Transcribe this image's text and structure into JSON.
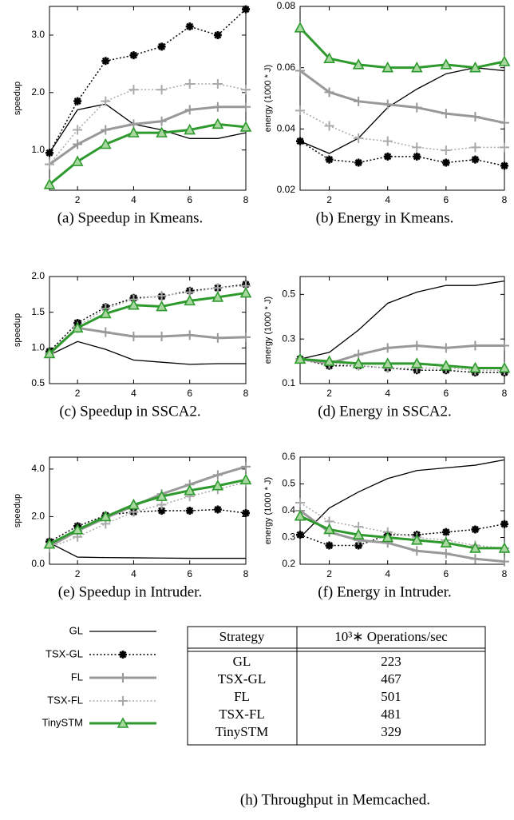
{
  "chart_data": [
    {
      "type": "line",
      "caption": "(a) Speedup in Kmeans.",
      "ylabel": "speedup",
      "x": [
        1,
        2,
        3,
        4,
        5,
        6,
        7,
        8
      ],
      "xlim": [
        1,
        8
      ],
      "xticks": [
        2,
        4,
        6,
        8
      ],
      "ylim": [
        0.3,
        3.5
      ],
      "yticks": [
        {
          "value": 1,
          "label": "1.0"
        },
        {
          "value": 2,
          "label": "2.0"
        },
        {
          "value": 3,
          "label": "3.0"
        }
      ],
      "series": [
        {
          "name": "GL",
          "color": "#000000",
          "line_style": "solid",
          "line_width": 1.3,
          "marker": "none",
          "values": [
            0.95,
            1.7,
            1.8,
            1.45,
            1.35,
            1.2,
            1.2,
            1.3
          ]
        },
        {
          "name": "TSX-GL",
          "color": "#000000",
          "line_style": "dotted",
          "line_width": 1.5,
          "marker": "star",
          "values": [
            0.95,
            1.85,
            2.55,
            2.65,
            2.8,
            3.15,
            3.0,
            3.45
          ]
        },
        {
          "name": "FL",
          "color": "#999999",
          "line_style": "solid",
          "line_width": 3,
          "marker": "plus",
          "values": [
            0.75,
            1.1,
            1.35,
            1.45,
            1.5,
            1.7,
            1.75,
            1.75
          ]
        },
        {
          "name": "TSX-FL",
          "color": "#aaaaaa",
          "line_style": "dotted",
          "line_width": 1.5,
          "marker": "plus",
          "values": [
            0.75,
            1.35,
            1.85,
            2.05,
            2.05,
            2.15,
            2.15,
            2.05
          ]
        },
        {
          "name": "TinySTM",
          "color": "#2e9a2e",
          "fill": "#a8d8a0",
          "line_style": "solid",
          "line_width": 3,
          "marker": "triangle",
          "values": [
            0.4,
            0.8,
            1.1,
            1.3,
            1.3,
            1.35,
            1.45,
            1.4
          ]
        }
      ]
    },
    {
      "type": "line",
      "caption": "(b) Energy in Kmeans.",
      "ylabel": "energy (1000 * J)",
      "x": [
        1,
        2,
        3,
        4,
        5,
        6,
        7,
        8
      ],
      "xlim": [
        1,
        8
      ],
      "xticks": [
        2,
        4,
        6,
        8
      ],
      "ylim": [
        0.02,
        0.08
      ],
      "yticks": [
        0.02,
        0.04,
        0.06,
        0.08
      ],
      "series": [
        {
          "name": "GL",
          "color": "#000000",
          "line_style": "solid",
          "line_width": 1.3,
          "marker": "none",
          "values": [
            0.036,
            0.032,
            0.037,
            0.047,
            0.053,
            0.058,
            0.06,
            0.059
          ]
        },
        {
          "name": "TSX-GL",
          "color": "#000000",
          "line_style": "dotted",
          "line_width": 1.5,
          "marker": "star",
          "values": [
            0.036,
            0.03,
            0.029,
            0.031,
            0.031,
            0.029,
            0.03,
            0.028
          ]
        },
        {
          "name": "FL",
          "color": "#999999",
          "line_style": "solid",
          "line_width": 3,
          "marker": "plus",
          "values": [
            0.059,
            0.052,
            0.049,
            0.048,
            0.047,
            0.045,
            0.044,
            0.042
          ]
        },
        {
          "name": "TSX-FL",
          "color": "#aaaaaa",
          "line_style": "dotted",
          "line_width": 1.5,
          "marker": "plus",
          "values": [
            0.046,
            0.041,
            0.037,
            0.036,
            0.034,
            0.033,
            0.034,
            0.034
          ]
        },
        {
          "name": "TinySTM",
          "color": "#2e9a2e",
          "fill": "#a8d8a0",
          "line_style": "solid",
          "line_width": 3,
          "marker": "triangle",
          "values": [
            0.073,
            0.063,
            0.061,
            0.06,
            0.06,
            0.061,
            0.06,
            0.062
          ]
        }
      ]
    },
    {
      "type": "line",
      "caption": "(c) Speedup in SSCA2.",
      "ylabel": "speedup",
      "x": [
        1,
        2,
        3,
        4,
        5,
        6,
        7,
        8
      ],
      "xlim": [
        1,
        8
      ],
      "xticks": [
        2,
        4,
        6,
        8
      ],
      "ylim": [
        0.5,
        2.0
      ],
      "yticks": [
        0.5,
        {
          "value": 1,
          "label": "1.0"
        },
        1.5,
        {
          "value": 2,
          "label": "2.0"
        }
      ],
      "series": [
        {
          "name": "GL",
          "color": "#000000",
          "line_style": "solid",
          "line_width": 1.3,
          "marker": "none",
          "values": [
            0.9,
            1.09,
            0.98,
            0.83,
            0.8,
            0.77,
            0.78,
            0.78
          ]
        },
        {
          "name": "TSX-GL",
          "color": "#000000",
          "line_style": "dotted",
          "line_width": 1.5,
          "marker": "star",
          "values": [
            0.95,
            1.35,
            1.57,
            1.7,
            1.72,
            1.8,
            1.84,
            1.89
          ]
        },
        {
          "name": "FL",
          "color": "#999999",
          "line_style": "solid",
          "line_width": 3,
          "marker": "plus",
          "values": [
            0.92,
            1.28,
            1.22,
            1.16,
            1.16,
            1.18,
            1.14,
            1.15
          ]
        },
        {
          "name": "TSX-FL",
          "color": "#aaaaaa",
          "line_style": "dotted",
          "line_width": 1.5,
          "marker": "plus",
          "values": [
            0.92,
            1.3,
            1.55,
            1.68,
            1.73,
            1.78,
            1.84,
            1.87
          ]
        },
        {
          "name": "TinySTM",
          "color": "#2e9a2e",
          "fill": "#a8d8a0",
          "line_style": "solid",
          "line_width": 3,
          "marker": "triangle",
          "values": [
            0.92,
            1.28,
            1.48,
            1.6,
            1.58,
            1.66,
            1.71,
            1.77
          ]
        }
      ]
    },
    {
      "type": "line",
      "caption": "(d) Energy in SSCA2.",
      "ylabel": "energy (1000 * J)",
      "x": [
        1,
        2,
        3,
        4,
        5,
        6,
        7,
        8
      ],
      "xlim": [
        1,
        8
      ],
      "xticks": [
        2,
        4,
        6,
        8
      ],
      "ylim": [
        0.1,
        0.58
      ],
      "yticks": [
        0.1,
        0.3,
        0.5
      ],
      "series": [
        {
          "name": "GL",
          "color": "#000000",
          "line_style": "solid",
          "line_width": 1.3,
          "marker": "none",
          "values": [
            0.21,
            0.24,
            0.34,
            0.46,
            0.51,
            0.54,
            0.54,
            0.56
          ]
        },
        {
          "name": "TSX-GL",
          "color": "#000000",
          "line_style": "dotted",
          "line_width": 1.5,
          "marker": "star",
          "values": [
            0.21,
            0.18,
            0.18,
            0.17,
            0.16,
            0.16,
            0.15,
            0.15
          ]
        },
        {
          "name": "FL",
          "color": "#999999",
          "line_style": "solid",
          "line_width": 3,
          "marker": "plus",
          "values": [
            0.21,
            0.19,
            0.23,
            0.26,
            0.27,
            0.26,
            0.27,
            0.27
          ]
        },
        {
          "name": "TSX-FL",
          "color": "#aaaaaa",
          "line_style": "dotted",
          "line_width": 1.5,
          "marker": "plus",
          "values": [
            0.21,
            0.19,
            0.18,
            0.17,
            0.17,
            0.17,
            0.16,
            0.16
          ]
        },
        {
          "name": "TinySTM",
          "color": "#2e9a2e",
          "fill": "#a8d8a0",
          "line_style": "solid",
          "line_width": 3,
          "marker": "triangle",
          "values": [
            0.21,
            0.2,
            0.19,
            0.19,
            0.19,
            0.18,
            0.17,
            0.17
          ]
        }
      ]
    },
    {
      "type": "line",
      "caption": "(e) Speedup in Intruder.",
      "ylabel": "speedup",
      "x": [
        1,
        2,
        3,
        4,
        5,
        6,
        7,
        8
      ],
      "xlim": [
        1,
        8
      ],
      "xticks": [
        2,
        4,
        6,
        8
      ],
      "ylim": [
        0,
        4.5
      ],
      "yticks": [
        {
          "value": 0,
          "label": "0.0"
        },
        {
          "value": 2,
          "label": "2.0"
        },
        {
          "value": 4,
          "label": "4.0"
        }
      ],
      "series": [
        {
          "name": "GL",
          "color": "#000000",
          "line_style": "solid",
          "line_width": 1.3,
          "marker": "none",
          "values": [
            0.9,
            0.3,
            0.28,
            0.27,
            0.26,
            0.25,
            0.25,
            0.25
          ]
        },
        {
          "name": "TSX-GL",
          "color": "#000000",
          "line_style": "dotted",
          "line_width": 1.5,
          "marker": "star",
          "values": [
            0.95,
            1.6,
            2.05,
            2.2,
            2.25,
            2.25,
            2.3,
            2.15
          ]
        },
        {
          "name": "FL",
          "color": "#999999",
          "line_style": "solid",
          "line_width": 3,
          "marker": "plus",
          "values": [
            0.75,
            1.4,
            1.95,
            2.45,
            2.95,
            3.35,
            3.75,
            4.1
          ]
        },
        {
          "name": "TSX-FL",
          "color": "#aaaaaa",
          "line_style": "dotted",
          "line_width": 1.5,
          "marker": "plus",
          "values": [
            0.7,
            1.15,
            1.7,
            2.2,
            2.5,
            2.85,
            3.15,
            3.45
          ]
        },
        {
          "name": "TinySTM",
          "color": "#2e9a2e",
          "fill": "#a8d8a0",
          "line_style": "solid",
          "line_width": 3,
          "marker": "triangle",
          "values": [
            0.85,
            1.45,
            2.0,
            2.5,
            2.85,
            3.1,
            3.3,
            3.55
          ]
        }
      ]
    },
    {
      "type": "line",
      "caption": "(f) Energy in Intruder.",
      "ylabel": "energy (1000 * J)",
      "x": [
        1,
        2,
        3,
        4,
        5,
        6,
        7,
        8
      ],
      "xlim": [
        1,
        8
      ],
      "xticks": [
        2,
        4,
        6,
        8
      ],
      "ylim": [
        0.2,
        0.6
      ],
      "yticks": [
        0.2,
        0.3,
        0.4,
        0.5,
        0.6
      ],
      "series": [
        {
          "name": "GL",
          "color": "#000000",
          "line_style": "solid",
          "line_width": 1.3,
          "marker": "none",
          "values": [
            0.3,
            0.41,
            0.47,
            0.52,
            0.55,
            0.56,
            0.57,
            0.59
          ]
        },
        {
          "name": "TSX-GL",
          "color": "#000000",
          "line_style": "dotted",
          "line_width": 1.5,
          "marker": "star",
          "values": [
            0.31,
            0.27,
            0.27,
            0.31,
            0.31,
            0.32,
            0.33,
            0.35
          ]
        },
        {
          "name": "FL",
          "color": "#999999",
          "line_style": "solid",
          "line_width": 3,
          "marker": "plus",
          "values": [
            0.4,
            0.32,
            0.29,
            0.28,
            0.25,
            0.24,
            0.22,
            0.21
          ]
        },
        {
          "name": "TSX-FL",
          "color": "#aaaaaa",
          "line_style": "dotted",
          "line_width": 1.5,
          "marker": "plus",
          "values": [
            0.43,
            0.36,
            0.34,
            0.32,
            0.3,
            0.29,
            0.27,
            0.26
          ]
        },
        {
          "name": "TinySTM",
          "color": "#2e9a2e",
          "fill": "#a8d8a0",
          "line_style": "solid",
          "line_width": 3,
          "marker": "triangle",
          "values": [
            0.38,
            0.33,
            0.31,
            0.3,
            0.29,
            0.28,
            0.26,
            0.26
          ]
        }
      ]
    }
  ],
  "table": {
    "header": [
      "Strategy",
      "10³∗ Operations/sec"
    ],
    "rows": [
      [
        "GL",
        223
      ],
      [
        "TSX-GL",
        467
      ],
      [
        "FL",
        501
      ],
      [
        "TSX-FL",
        481
      ],
      [
        "TinySTM",
        329
      ]
    ],
    "caption": "(h) Throughput in Memcached."
  }
}
